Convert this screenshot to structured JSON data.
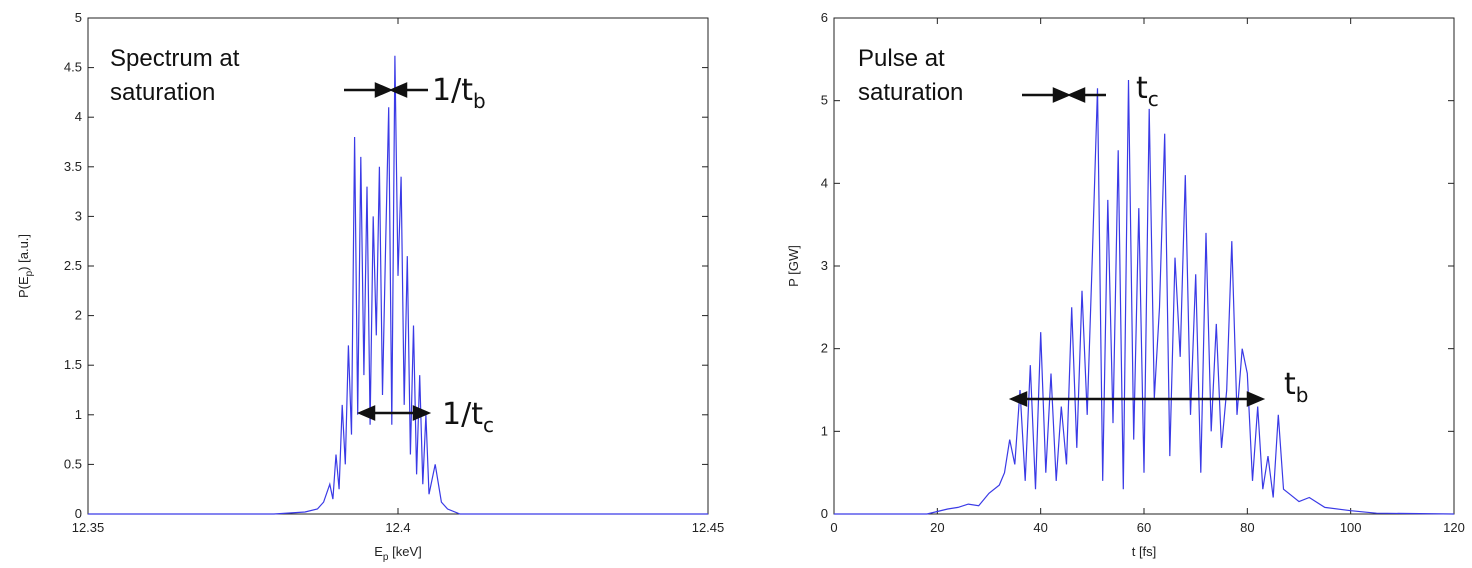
{
  "chart_data": [
    {
      "type": "line",
      "ylabel": "P(E",
      "ylabel_sub": "p",
      "ylabel_tail": ") [a.u.]",
      "xlabel": "E",
      "xlabel_sub": "p",
      "xlabel_tail": " [keV]",
      "xlim": [
        12.35,
        12.45
      ],
      "ylim": [
        0,
        5
      ],
      "xticks": [
        12.35,
        12.4,
        12.45
      ],
      "xtick_labels": [
        "12.35",
        "12.4",
        "12.45"
      ],
      "yticks": [
        0,
        0.5,
        1,
        1.5,
        2,
        2.5,
        3,
        3.5,
        4,
        4.5,
        5
      ],
      "ytick_labels": [
        "0",
        "0.5",
        "1",
        "1.5",
        "2",
        "2.5",
        "3",
        "3.5",
        "4",
        "4.5",
        "5"
      ],
      "series_color": "#3a3ae6",
      "series": [
        {
          "x": [
            12.35,
            12.38,
            12.385,
            12.387,
            12.388,
            12.389,
            12.3895,
            12.39,
            12.3905,
            12.391,
            12.3915,
            12.392,
            12.3925,
            12.393,
            12.3935,
            12.394,
            12.3945,
            12.395,
            12.3955,
            12.396,
            12.3965,
            12.397,
            12.3975,
            12.398,
            12.3985,
            12.399,
            12.3995,
            12.4,
            12.4005,
            12.401,
            12.4015,
            12.402,
            12.4025,
            12.403,
            12.4035,
            12.404,
            12.4045,
            12.405,
            12.406,
            12.407,
            12.408,
            12.41,
            12.45
          ],
          "values": [
            0,
            0,
            0.02,
            0.05,
            0.12,
            0.3,
            0.15,
            0.6,
            0.25,
            1.1,
            0.5,
            1.7,
            0.8,
            3.8,
            1.0,
            3.6,
            1.4,
            3.3,
            0.9,
            3.0,
            1.8,
            3.5,
            1.2,
            2.7,
            4.1,
            0.9,
            4.62,
            2.4,
            3.4,
            1.1,
            2.6,
            0.6,
            1.9,
            0.4,
            1.4,
            0.3,
            1.0,
            0.2,
            0.5,
            0.12,
            0.05,
            0.0,
            0
          ]
        }
      ],
      "annotation": {
        "text_lines": [
          "Spectrum at",
          "saturation"
        ],
        "top_label": "1/t",
        "top_sub": "b",
        "mid_label": "1/t",
        "mid_sub": "c"
      }
    },
    {
      "type": "line",
      "ylabel": "P [GW]",
      "xlabel": "t [fs]",
      "xlim": [
        0,
        120
      ],
      "ylim": [
        0,
        6
      ],
      "xticks": [
        0,
        20,
        40,
        60,
        80,
        100,
        120
      ],
      "xtick_labels": [
        "0",
        "20",
        "40",
        "60",
        "80",
        "100",
        "120"
      ],
      "yticks": [
        0,
        1,
        2,
        3,
        4,
        5,
        6
      ],
      "ytick_labels": [
        "0",
        "1",
        "2",
        "3",
        "4",
        "5",
        "6"
      ],
      "series_color": "#3a3ae6",
      "series": [
        {
          "x": [
            0,
            18,
            20,
            22,
            24,
            26,
            28,
            30,
            32,
            33,
            34,
            35,
            36,
            37,
            38,
            39,
            40,
            41,
            42,
            43,
            44,
            45,
            46,
            47,
            48,
            49,
            50,
            51,
            52,
            53,
            54,
            55,
            56,
            57,
            58,
            59,
            60,
            61,
            62,
            63,
            64,
            65,
            66,
            67,
            68,
            69,
            70,
            71,
            72,
            73,
            74,
            75,
            76,
            77,
            78,
            79,
            80,
            81,
            82,
            83,
            84,
            85,
            86,
            87,
            88,
            90,
            92,
            95,
            100,
            105,
            120
          ],
          "values": [
            0,
            0,
            0.03,
            0.06,
            0.08,
            0.12,
            0.1,
            0.25,
            0.35,
            0.5,
            0.9,
            0.6,
            1.5,
            0.4,
            1.8,
            0.3,
            2.2,
            0.5,
            1.7,
            0.4,
            1.3,
            0.6,
            2.5,
            0.8,
            2.7,
            1.2,
            3.1,
            5.15,
            0.4,
            3.8,
            1.1,
            4.4,
            0.3,
            5.25,
            0.9,
            3.7,
            0.5,
            4.9,
            1.4,
            2.5,
            4.6,
            0.7,
            3.1,
            1.9,
            4.1,
            1.2,
            2.9,
            0.5,
            3.4,
            1.0,
            2.3,
            0.8,
            1.5,
            3.3,
            1.2,
            2.0,
            1.7,
            0.4,
            1.3,
            0.3,
            0.7,
            0.2,
            1.2,
            0.3,
            0.25,
            0.15,
            0.2,
            0.08,
            0.04,
            0.01,
            0
          ]
        }
      ],
      "annotation": {
        "text_lines": [
          "Pulse at",
          "saturation"
        ],
        "top_label": "t",
        "top_sub": "c",
        "mid_label": "t",
        "mid_sub": "b"
      }
    }
  ]
}
